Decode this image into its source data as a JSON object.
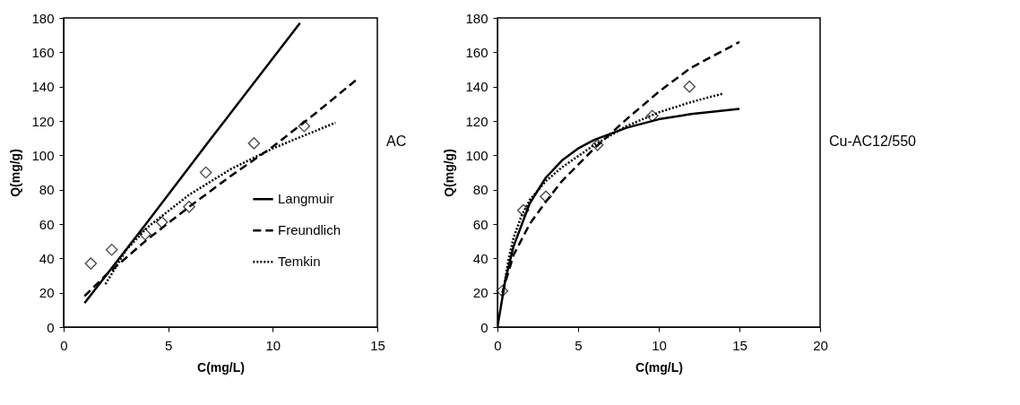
{
  "chart_data": [
    {
      "type": "line",
      "xlabel": "C(mg/L)",
      "ylabel": "Q(mg/g)",
      "annotations": [
        "AC"
      ],
      "xlim": [
        0,
        15
      ],
      "xticks": [
        0,
        5,
        10,
        15
      ],
      "ylim": [
        0,
        180
      ],
      "yticks": [
        0,
        20,
        40,
        60,
        80,
        100,
        120,
        140,
        160,
        180
      ],
      "legend": "right",
      "series": [
        {
          "type": "scatter",
          "marker": "diamond",
          "color": "#000000",
          "x": [
            1.3,
            2.3,
            3.9,
            4.7,
            6.0,
            6.8,
            9.1,
            11.5
          ],
          "values": [
            37,
            45,
            54,
            61,
            70,
            90,
            107,
            117
          ]
        },
        {
          "name": "Langmuir",
          "line_style": "solid",
          "color": "#000000",
          "x": [
            1,
            4,
            7,
            11.3
          ],
          "values": [
            14,
            61,
            109,
            177
          ]
        },
        {
          "name": "Freundlich",
          "line_style": "dashed",
          "color": "#000000",
          "x": [
            1,
            2,
            4,
            6,
            8,
            10,
            12,
            14
          ],
          "values": [
            18,
            30,
            51,
            70,
            88,
            105,
            124,
            144
          ]
        },
        {
          "name": "Temkin",
          "line_style": "dotted",
          "color": "#000000",
          "x": [
            2,
            3,
            4,
            6,
            8,
            10,
            12,
            13
          ],
          "values": [
            25,
            45,
            58,
            77,
            92,
            104,
            114,
            119
          ]
        }
      ]
    },
    {
      "type": "line",
      "xlabel": "C(mg/L)",
      "ylabel": "Q(mg/g)",
      "annotations": [
        "Cu-AC12/550"
      ],
      "xlim": [
        0,
        20
      ],
      "xticks": [
        0,
        5,
        10,
        15,
        20
      ],
      "ylim": [
        0,
        180
      ],
      "yticks": [
        0,
        20,
        40,
        60,
        80,
        100,
        120,
        140,
        160,
        180
      ],
      "legend": "right",
      "series": [
        {
          "type": "scatter",
          "marker": "diamond",
          "color": "#000000",
          "x": [
            0.3,
            1.6,
            3.0,
            6.2,
            9.6,
            11.9
          ],
          "values": [
            21,
            68,
            76,
            106,
            123,
            140
          ]
        },
        {
          "name": "Langmuir",
          "line_style": "solid",
          "color": "#000000",
          "x": [
            0,
            0.5,
            1,
            2,
            3,
            4,
            5,
            6,
            8,
            10,
            12,
            15
          ],
          "values": [
            0,
            28,
            47,
            72,
            87,
            97,
            104,
            109,
            116,
            121,
            124,
            127
          ]
        },
        {
          "name": "Freundlich",
          "line_style": "dashed",
          "color": "#000000",
          "x": [
            0.3,
            1,
            2,
            3,
            4,
            6,
            8,
            10,
            12,
            15
          ],
          "values": [
            20,
            42,
            60,
            73,
            85,
            104,
            121,
            137,
            151,
            166
          ]
        },
        {
          "name": "Temkin",
          "line_style": "dotted",
          "color": "#000000",
          "x": [
            0.3,
            0.7,
            1,
            1.5,
            2,
            3,
            4,
            6,
            8,
            10,
            12,
            14
          ],
          "values": [
            18,
            40,
            52,
            65,
            74,
            85,
            93,
            106,
            117,
            125,
            131,
            136
          ]
        }
      ]
    }
  ]
}
